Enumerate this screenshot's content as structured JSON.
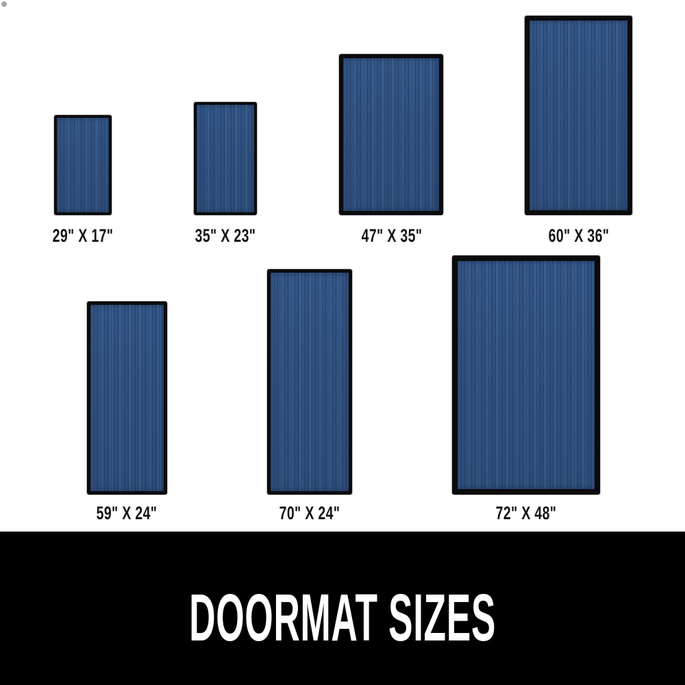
{
  "banner": {
    "title": "DOORMAT SIZES",
    "background": "#000000",
    "text_color": "#ffffff"
  },
  "colors": {
    "mat_blue": "#2b4f84",
    "mat_frame_black": "#0b0b0e",
    "page_background": "#ffffff",
    "label_text": "#141414"
  },
  "mats": [
    {
      "label": "29\" X 17\"",
      "length_in": 29,
      "width_in": 17,
      "row": 1
    },
    {
      "label": "35\" X 23\"",
      "length_in": 35,
      "width_in": 23,
      "row": 1
    },
    {
      "label": "47\" X 35\"",
      "length_in": 47,
      "width_in": 35,
      "row": 1
    },
    {
      "label": "60\" X 36\"",
      "length_in": 60,
      "width_in": 36,
      "row": 1
    },
    {
      "label": "59\" X 24\"",
      "length_in": 59,
      "width_in": 24,
      "row": 2
    },
    {
      "label": "70\" X 24\"",
      "length_in": 70,
      "width_in": 24,
      "row": 2
    },
    {
      "label": "72\" X 48\"",
      "length_in": 72,
      "width_in": 48,
      "row": 2
    }
  ]
}
